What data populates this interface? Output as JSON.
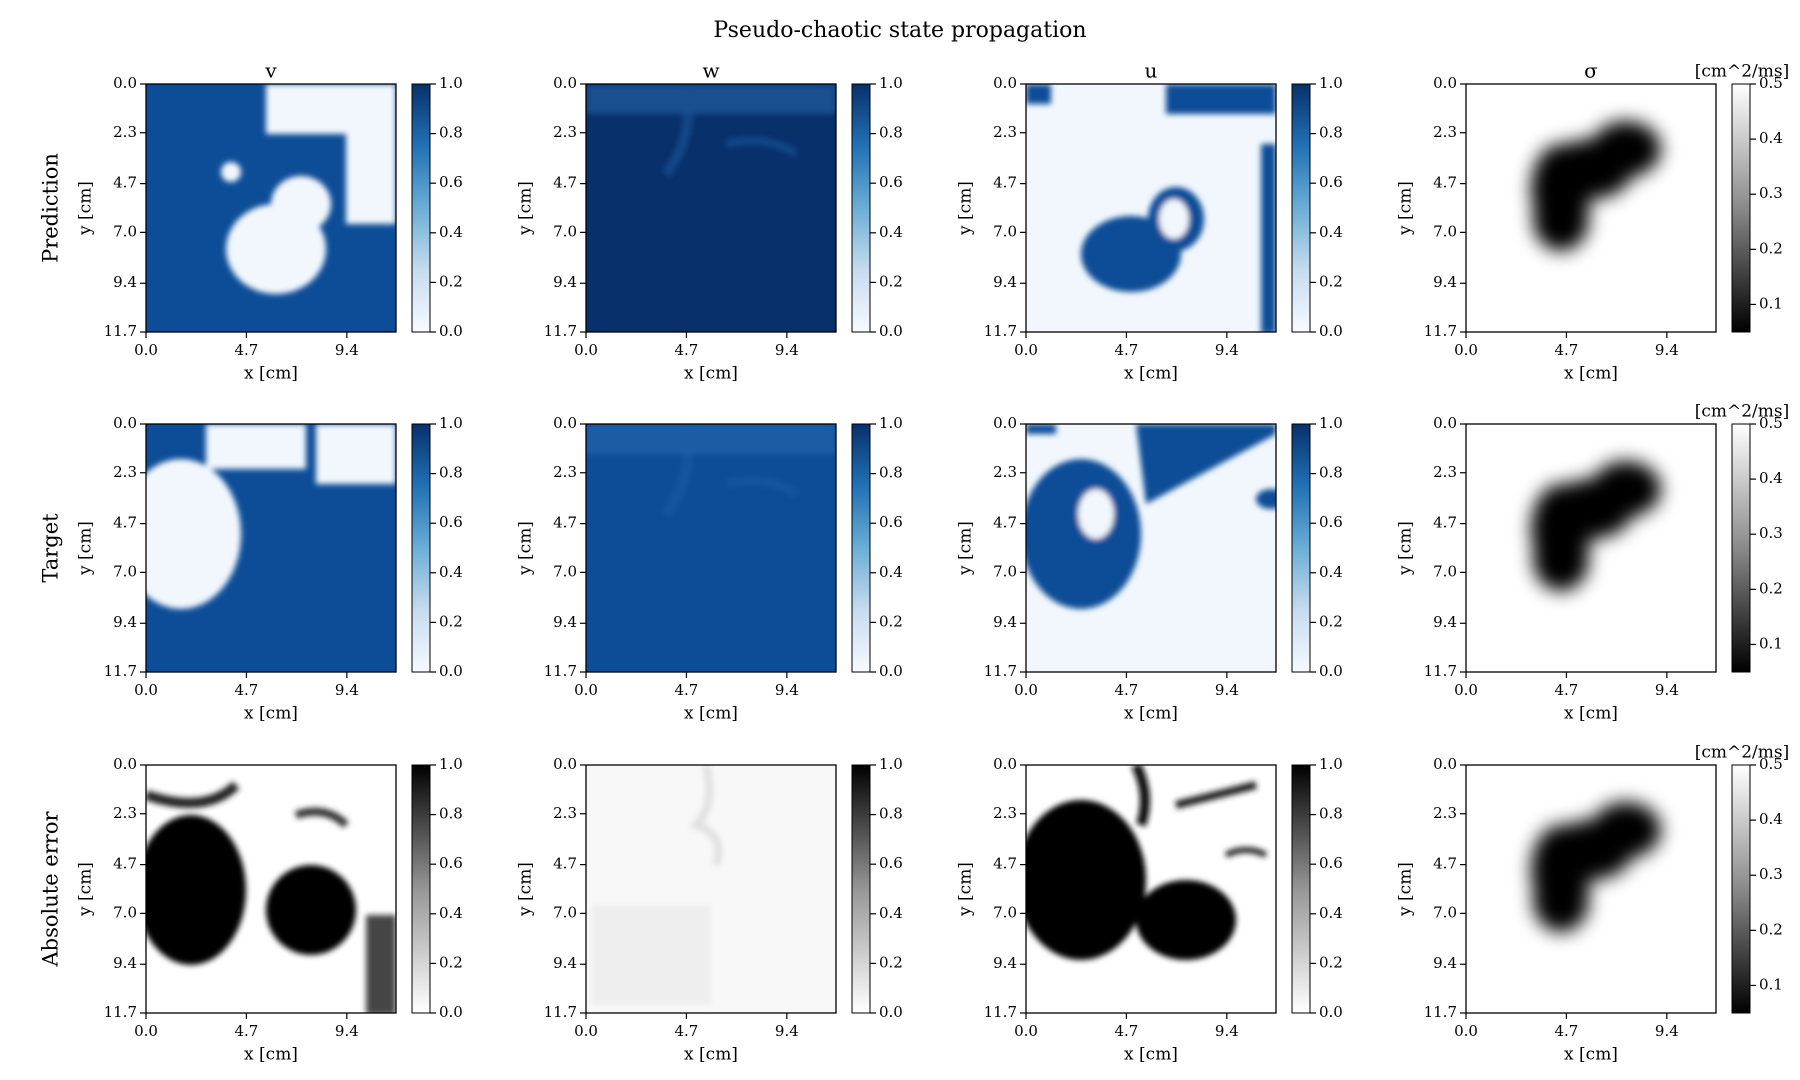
{
  "figure": {
    "title": "Pseudo-chaotic state propagation"
  },
  "chart_data": {
    "type": "heatmap",
    "title": "Pseudo-chaotic state propagation",
    "columns": [
      "v",
      "w",
      "u",
      "σ"
    ],
    "rows": [
      "Prediction",
      "Target",
      "Absolute error"
    ],
    "xlabel": "x [cm]",
    "ylabel": "y [cm]",
    "x_ticks": [
      "0.0",
      "4.7",
      "9.4"
    ],
    "y_ticks": [
      "0.0",
      "2.3",
      "4.7",
      "7.0",
      "9.4",
      "11.7"
    ],
    "xlim": [
      0,
      11.7
    ],
    "ylim": [
      0,
      11.7
    ],
    "colorbar_ticks_state": [
      "0.0",
      "0.2",
      "0.4",
      "0.6",
      "0.8",
      "1.0"
    ],
    "colorbar_ticks_sigma": [
      "0.1",
      "0.2",
      "0.3",
      "0.4",
      "0.5"
    ],
    "colorbar_range_state": [
      0,
      1
    ],
    "colorbar_range_sigma": [
      0.05,
      0.5
    ],
    "sigma_unit": "[cm^2/ms]",
    "colormaps": {
      "prediction_target": "Blues",
      "absolute_error": "Greys",
      "sigma": "Greys_r"
    },
    "colors": {
      "blue_dark": "#08306b",
      "blue_mid": "#0d4d98",
      "blue_light": "#f2f7fd"
    },
    "grid": false
  }
}
